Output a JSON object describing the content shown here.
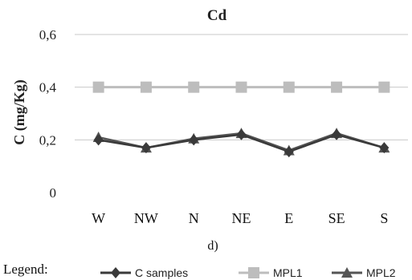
{
  "chart_data": {
    "type": "line",
    "title": "Cd",
    "xlabel": "",
    "ylabel": "C (mg/Kg)",
    "ylim": [
      0,
      0.6
    ],
    "yticks": [
      0,
      0.2,
      0.4,
      0.6
    ],
    "ytick_labels": [
      "0",
      "0,2",
      "0,4",
      "0,6"
    ],
    "grid": true,
    "categories": [
      "W",
      "NW",
      "N",
      "NE",
      "E",
      "SE",
      "S"
    ],
    "series": [
      {
        "name": "C samples",
        "values": [
          0.2,
          0.17,
          0.2,
          0.22,
          0.155,
          0.22,
          0.17
        ],
        "color": "#3a3a3a",
        "marker": "diamond"
      },
      {
        "name": "MPL1",
        "values": [
          0.4,
          0.4,
          0.4,
          0.4,
          0.4,
          0.4,
          0.4
        ],
        "color": "#bdbdbd",
        "marker": "square"
      },
      {
        "name": "MPL2",
        "values": [
          0.21,
          0.17,
          0.205,
          0.225,
          0.16,
          0.225,
          0.17
        ],
        "color": "#555555",
        "marker": "triangle"
      }
    ],
    "legend_title": "Legend:",
    "legend_position": "bottom"
  },
  "caption": "d)"
}
